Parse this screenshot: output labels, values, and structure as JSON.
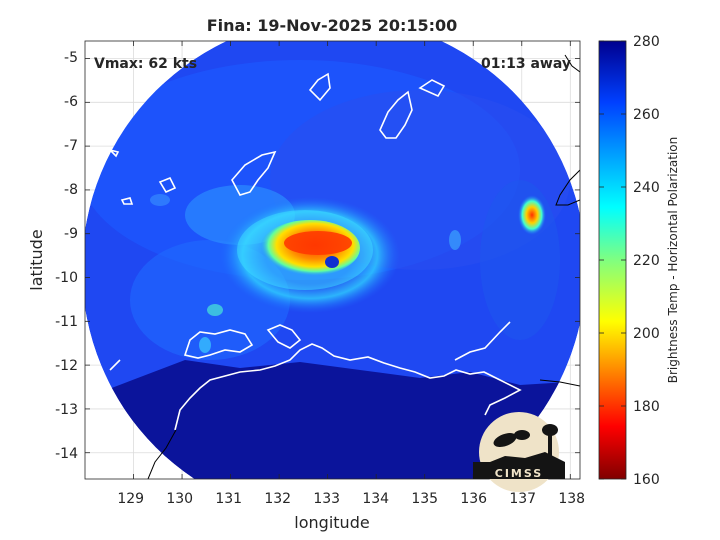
{
  "title": "Fina: 19-Nov-2025 20:15:00",
  "annotations": {
    "vmax": "Vmax: 62 kts",
    "time_away": "01:13 away"
  },
  "axes": {
    "xlabel": "longitude",
    "ylabel": "latitude",
    "x_ticks": [
      "129",
      "130",
      "131",
      "132",
      "133",
      "134",
      "135",
      "136",
      "137",
      "138"
    ],
    "y_ticks": [
      "-5",
      "-6",
      "-7",
      "-8",
      "-9",
      "-10",
      "-11",
      "-12",
      "-13",
      "-14"
    ]
  },
  "colorbar": {
    "label": "Brightness Temp - Horizontal Polarization",
    "ticks": [
      "280",
      "260",
      "240",
      "220",
      "200",
      "180",
      "160"
    ],
    "range": [
      160,
      280
    ]
  },
  "logo": {
    "text": "CIMSS"
  },
  "chart_data": {
    "type": "heatmap",
    "title": "Fina: 19-Nov-2025 20:15:00",
    "xlabel": "longitude",
    "ylabel": "latitude",
    "xlim": [
      128,
      138.2
    ],
    "ylim": [
      -14.6,
      -4.6
    ],
    "colorbar_range": [
      160,
      280
    ],
    "grid": true,
    "storm_center": {
      "lon": 133.0,
      "lat": -9.6
    },
    "swath_center": {
      "lon": 133.2,
      "lat": -9.5
    }
  }
}
